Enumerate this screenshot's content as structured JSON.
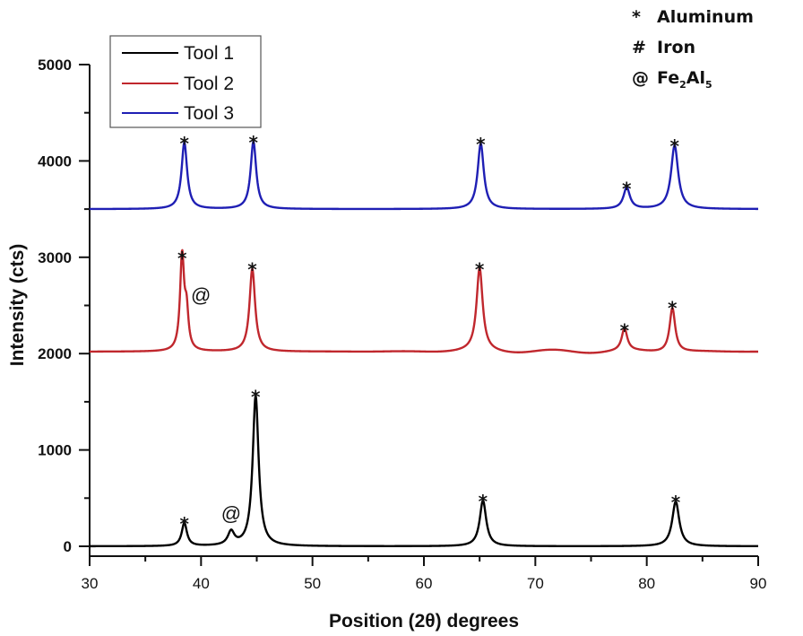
{
  "chart_data": {
    "type": "line",
    "title": "",
    "xlabel": "Position (2θ) degrees",
    "ylabel": "Intensity (cts)",
    "xlim": [
      30,
      90
    ],
    "ylim": [
      -100,
      5000
    ],
    "x_ticks": [
      30,
      40,
      50,
      60,
      70,
      80,
      90
    ],
    "x_tick_labels": [
      "30",
      "40",
      "50",
      "60",
      "70",
      "80",
      "90"
    ],
    "y_ticks": [
      0,
      1000,
      2000,
      3000,
      4000,
      5000
    ],
    "y_tick_labels": [
      "0",
      "1000",
      "2000",
      "3000",
      "4000",
      "5000"
    ],
    "grid": false,
    "legend": {
      "placement": "top-left",
      "entries": [
        "Tool 1",
        "Tool 2",
        "Tool 3"
      ]
    },
    "phase_key": [
      {
        "symbol": "*",
        "phase": "Aluminum"
      },
      {
        "symbol": "#",
        "phase": "Iron"
      },
      {
        "symbol": "@",
        "phase": "Fe2Al5",
        "display_base": "Fe",
        "sub1": "2",
        "mid": "Al",
        "sub2": "5"
      }
    ],
    "series": [
      {
        "name": "Tool 1",
        "color": "#000000",
        "baseline": 0,
        "peaks": [
          {
            "x": 38.5,
            "y": 240,
            "width": 0.28,
            "marker": "*"
          },
          {
            "x": 42.7,
            "y": 140,
            "width": 0.35,
            "marker": "@"
          },
          {
            "x": 44.9,
            "y": 1560,
            "width": 0.32,
            "marker": "*"
          },
          {
            "x": 65.3,
            "y": 475,
            "width": 0.35,
            "marker": "*"
          },
          {
            "x": 82.6,
            "y": 465,
            "width": 0.38,
            "marker": "*"
          }
        ]
      },
      {
        "name": "Tool 2",
        "color": "#c0272d",
        "baseline": 2020,
        "peaks": [
          {
            "x": 38.3,
            "y": 3000,
            "width": 0.22,
            "marker": "*"
          },
          {
            "x": 38.7,
            "y": 2390,
            "width": 0.2,
            "marker": "@"
          },
          {
            "x": 44.6,
            "y": 2880,
            "width": 0.3,
            "marker": "*"
          },
          {
            "x": 65.0,
            "y": 2880,
            "width": 0.33,
            "marker": "*"
          },
          {
            "x": 78.0,
            "y": 2250,
            "width": 0.3,
            "marker": "*"
          },
          {
            "x": 82.3,
            "y": 2480,
            "width": 0.3,
            "marker": "*"
          }
        ]
      },
      {
        "name": "Tool 3",
        "color": "#1f1fb4",
        "baseline": 3500,
        "peaks": [
          {
            "x": 38.5,
            "y": 4190,
            "width": 0.3,
            "marker": "*"
          },
          {
            "x": 44.7,
            "y": 4200,
            "width": 0.3,
            "marker": "*"
          },
          {
            "x": 65.1,
            "y": 4180,
            "width": 0.33,
            "marker": "*"
          },
          {
            "x": 78.2,
            "y": 3720,
            "width": 0.35,
            "marker": "*"
          },
          {
            "x": 82.5,
            "y": 4160,
            "width": 0.38,
            "marker": "*"
          }
        ]
      }
    ]
  }
}
